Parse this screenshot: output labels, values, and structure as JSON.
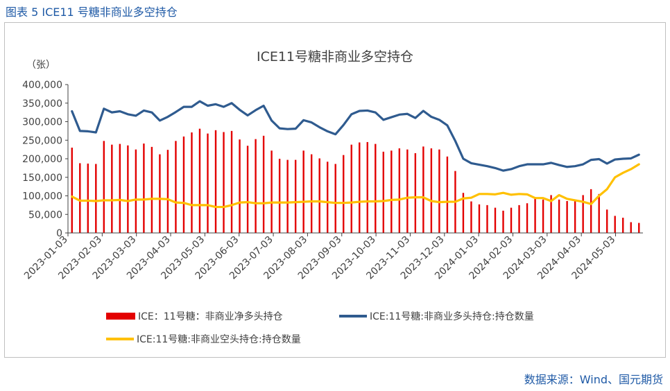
{
  "caption": "图表 5  ICE11 号糖非商业多空持仓",
  "source": "数据来源：Wind、国元期货",
  "colors": {
    "net": "#e30000",
    "long": "#2f5b8f",
    "short": "#ffc000",
    "axis": "#404040",
    "grid": "#d9d9d9"
  },
  "chart_data": {
    "type": "bar+line",
    "title": "ICE11号糖非商业多空持仓",
    "unit_label": "（张）",
    "ylim": [
      0,
      400000
    ],
    "yticks": [
      "0",
      "50,000",
      "100,000",
      "150,000",
      "200,000",
      "250,000",
      "300,000",
      "350,000",
      "400,000"
    ],
    "xtick_labels": [
      "2023-01-03",
      "2023-02-03",
      "2023-03-03",
      "2023-04-03",
      "2023-05-03",
      "2023-06-03",
      "2023-07-03",
      "2023-08-03",
      "2023-09-03",
      "2023-10-03",
      "2023-11-03",
      "2023-12-03",
      "2024-01-03",
      "2024-02-03",
      "2024-03-03",
      "2024-04-03",
      "2024-05-03"
    ],
    "legend": [
      "ICE：11号糖：非商业净多头持仓",
      "ICE:11号糖:非商业多头持仓:持仓数量",
      "ICE:11号糖:非商业空头持仓:持仓数量"
    ],
    "series": [
      {
        "name": "ICE：11号糖：非商业净多头持仓",
        "kind": "bar",
        "values": [
          230000,
          188000,
          187000,
          186000,
          248000,
          238000,
          240000,
          236000,
          225000,
          241000,
          232000,
          212000,
          224000,
          248000,
          260000,
          271000,
          281000,
          268000,
          277000,
          272000,
          275000,
          252000,
          235000,
          253000,
          262000,
          222000,
          200000,
          197000,
          197000,
          222000,
          212000,
          201000,
          192000,
          186000,
          210000,
          238000,
          244000,
          245000,
          240000,
          219000,
          222000,
          228000,
          225000,
          215000,
          233000,
          228000,
          225000,
          206000,
          167000,
          108000,
          85000,
          77000,
          75000,
          68000,
          60000,
          68000,
          75000,
          80000,
          92000,
          90000,
          102000,
          90000,
          86000,
          88000,
          102000,
          118000,
          105000,
          63000,
          46000,
          41000,
          29000,
          27000
        ]
      },
      {
        "name": "ICE:11号糖:非商业多头持仓:持仓数量",
        "kind": "line",
        "values": [
          328000,
          275000,
          274000,
          271000,
          335000,
          325000,
          328000,
          320000,
          316000,
          330000,
          325000,
          303000,
          313000,
          326000,
          340000,
          340000,
          355000,
          343000,
          347000,
          340000,
          350000,
          332000,
          317000,
          331000,
          343000,
          303000,
          282000,
          280000,
          281000,
          304000,
          298000,
          285000,
          274000,
          266000,
          291000,
          320000,
          329000,
          330000,
          325000,
          305000,
          312000,
          319000,
          321000,
          310000,
          329000,
          313000,
          305000,
          290000,
          248000,
          200000,
          188000,
          184000,
          180000,
          175000,
          168000,
          172000,
          180000,
          185000,
          185000,
          185000,
          189000,
          183000,
          178000,
          180000,
          185000,
          197000,
          199000,
          187000,
          198000,
          200000,
          201000,
          211000
        ]
      },
      {
        "name": "ICE:11号糖:非商业空头持仓:持仓数量",
        "kind": "line",
        "values": [
          98000,
          87000,
          87000,
          86000,
          88000,
          88000,
          89000,
          86000,
          90000,
          90000,
          92000,
          92000,
          91000,
          82000,
          81000,
          75000,
          75000,
          75000,
          70000,
          70000,
          75000,
          82000,
          83000,
          80000,
          80000,
          82000,
          82000,
          82000,
          83000,
          84000,
          85000,
          85000,
          83000,
          81000,
          81000,
          82000,
          84000,
          85000,
          85000,
          86000,
          89000,
          90000,
          95000,
          96000,
          96000,
          86000,
          83000,
          84000,
          84000,
          93000,
          95000,
          105000,
          105000,
          104000,
          108000,
          103000,
          105000,
          104000,
          94000,
          94000,
          86000,
          102000,
          92000,
          88000,
          84000,
          78000,
          100000,
          118000,
          150000,
          162000,
          172000,
          185000
        ]
      }
    ]
  }
}
